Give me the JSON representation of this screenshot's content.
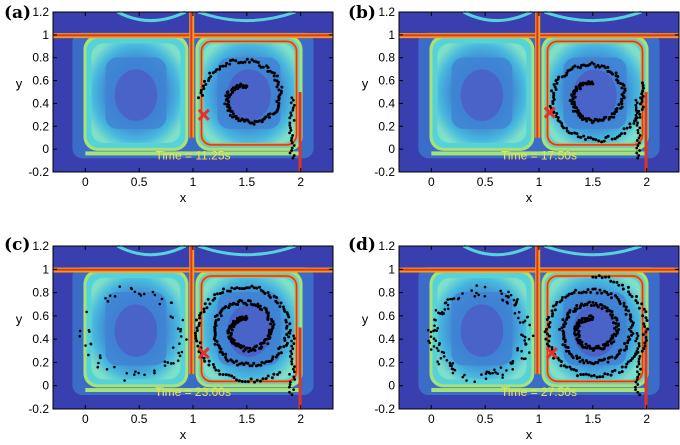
{
  "colors": {
    "background_outer": "#3a3fb0",
    "cell_mid": "#2f8fd8",
    "cell_core": "#4a63c9",
    "ring_cyan": "#55d3d8",
    "ring_green": "#a6e27a",
    "ridge_red": "#e2351d",
    "ridge_orange": "#f39a1f",
    "particles": "#000000",
    "marker": "#e8302a",
    "time_text": "#f2e34a"
  },
  "chart_data": [
    {
      "type": "scatter",
      "panel_label": "(a)",
      "time_label": "Time = 11.25s",
      "xlabel": "x",
      "ylabel": "y",
      "xlim": [
        -0.3,
        2.3
      ],
      "ylim": [
        -0.2,
        1.2
      ],
      "xticks": [
        "0",
        "0.5",
        "1",
        "1.5",
        "2"
      ],
      "yticks": [
        "-0.2",
        "0",
        "0.2",
        "0.4",
        "0.6",
        "0.8",
        "1",
        "1.2"
      ],
      "xtick_values": [
        0,
        0.5,
        1,
        1.5,
        2
      ],
      "ytick_values": [
        -0.2,
        0,
        0.2,
        0.4,
        0.6,
        0.8,
        1,
        1.2
      ],
      "marker": {
        "x": 1.1,
        "y": 0.3
      },
      "spiral": {
        "cx": 1.5,
        "cy": 0.45,
        "r_start": 0.1,
        "r_end": 0.38,
        "turns": 1.25,
        "points": 140
      }
    },
    {
      "type": "scatter",
      "panel_label": "(b)",
      "time_label": "Time = 17.50s",
      "xlabel": "x",
      "ylabel": "y",
      "xlim": [
        -0.3,
        2.3
      ],
      "ylim": [
        -0.2,
        1.2
      ],
      "xticks": [
        "0",
        "0.5",
        "1",
        "1.5",
        "2"
      ],
      "yticks": [
        "-0.2",
        "0",
        "0.2",
        "0.4",
        "0.6",
        "0.8",
        "1",
        "1.2"
      ],
      "xtick_values": [
        0,
        0.5,
        1,
        1.5,
        2
      ],
      "ytick_values": [
        -0.2,
        0,
        0.2,
        0.4,
        0.6,
        0.8,
        1,
        1.2
      ],
      "marker": {
        "x": 1.1,
        "y": 0.32
      },
      "spiral": {
        "cx": 1.5,
        "cy": 0.45,
        "r_start": 0.12,
        "r_end": 0.42,
        "turns": 1.8,
        "points": 200
      }
    },
    {
      "type": "scatter",
      "panel_label": "(c)",
      "time_label": "Time = 23.00s",
      "xlabel": "x",
      "ylabel": "y",
      "xlim": [
        -0.3,
        2.3
      ],
      "ylim": [
        -0.2,
        1.2
      ],
      "xticks": [
        "0",
        "0.5",
        "1",
        "1.5",
        "2"
      ],
      "yticks": [
        "-0.2",
        "0",
        "0.2",
        "0.4",
        "0.6",
        "0.8",
        "1",
        "1.2"
      ],
      "xtick_values": [
        0,
        0.5,
        1,
        1.5,
        2
      ],
      "ytick_values": [
        -0.2,
        0,
        0.2,
        0.4,
        0.6,
        0.8,
        1,
        1.2
      ],
      "marker": {
        "x": 1.1,
        "y": 0.28
      },
      "spiral": {
        "cx": 1.5,
        "cy": 0.48,
        "r_start": 0.1,
        "r_end": 0.45,
        "turns": 2.6,
        "points": 300
      }
    },
    {
      "type": "scatter",
      "panel_label": "(d)",
      "time_label": "Time = 27.50s",
      "xlabel": "x",
      "ylabel": "y",
      "xlim": [
        -0.3,
        2.3
      ],
      "ylim": [
        -0.2,
        1.2
      ],
      "xticks": [
        "0",
        "0.5",
        "1",
        "1.5",
        "2"
      ],
      "yticks": [
        "-0.2",
        "0",
        "0.2",
        "0.4",
        "0.6",
        "0.8",
        "1",
        "1.2"
      ],
      "xtick_values": [
        0,
        0.5,
        1,
        1.5,
        2
      ],
      "ytick_values": [
        -0.2,
        0,
        0.2,
        0.4,
        0.6,
        0.8,
        1,
        1.2
      ],
      "marker": {
        "x": 1.12,
        "y": 0.28
      },
      "spiral": {
        "cx": 1.5,
        "cy": 0.48,
        "r_start": 0.1,
        "r_end": 0.46,
        "turns": 3.0,
        "points": 340
      }
    }
  ]
}
